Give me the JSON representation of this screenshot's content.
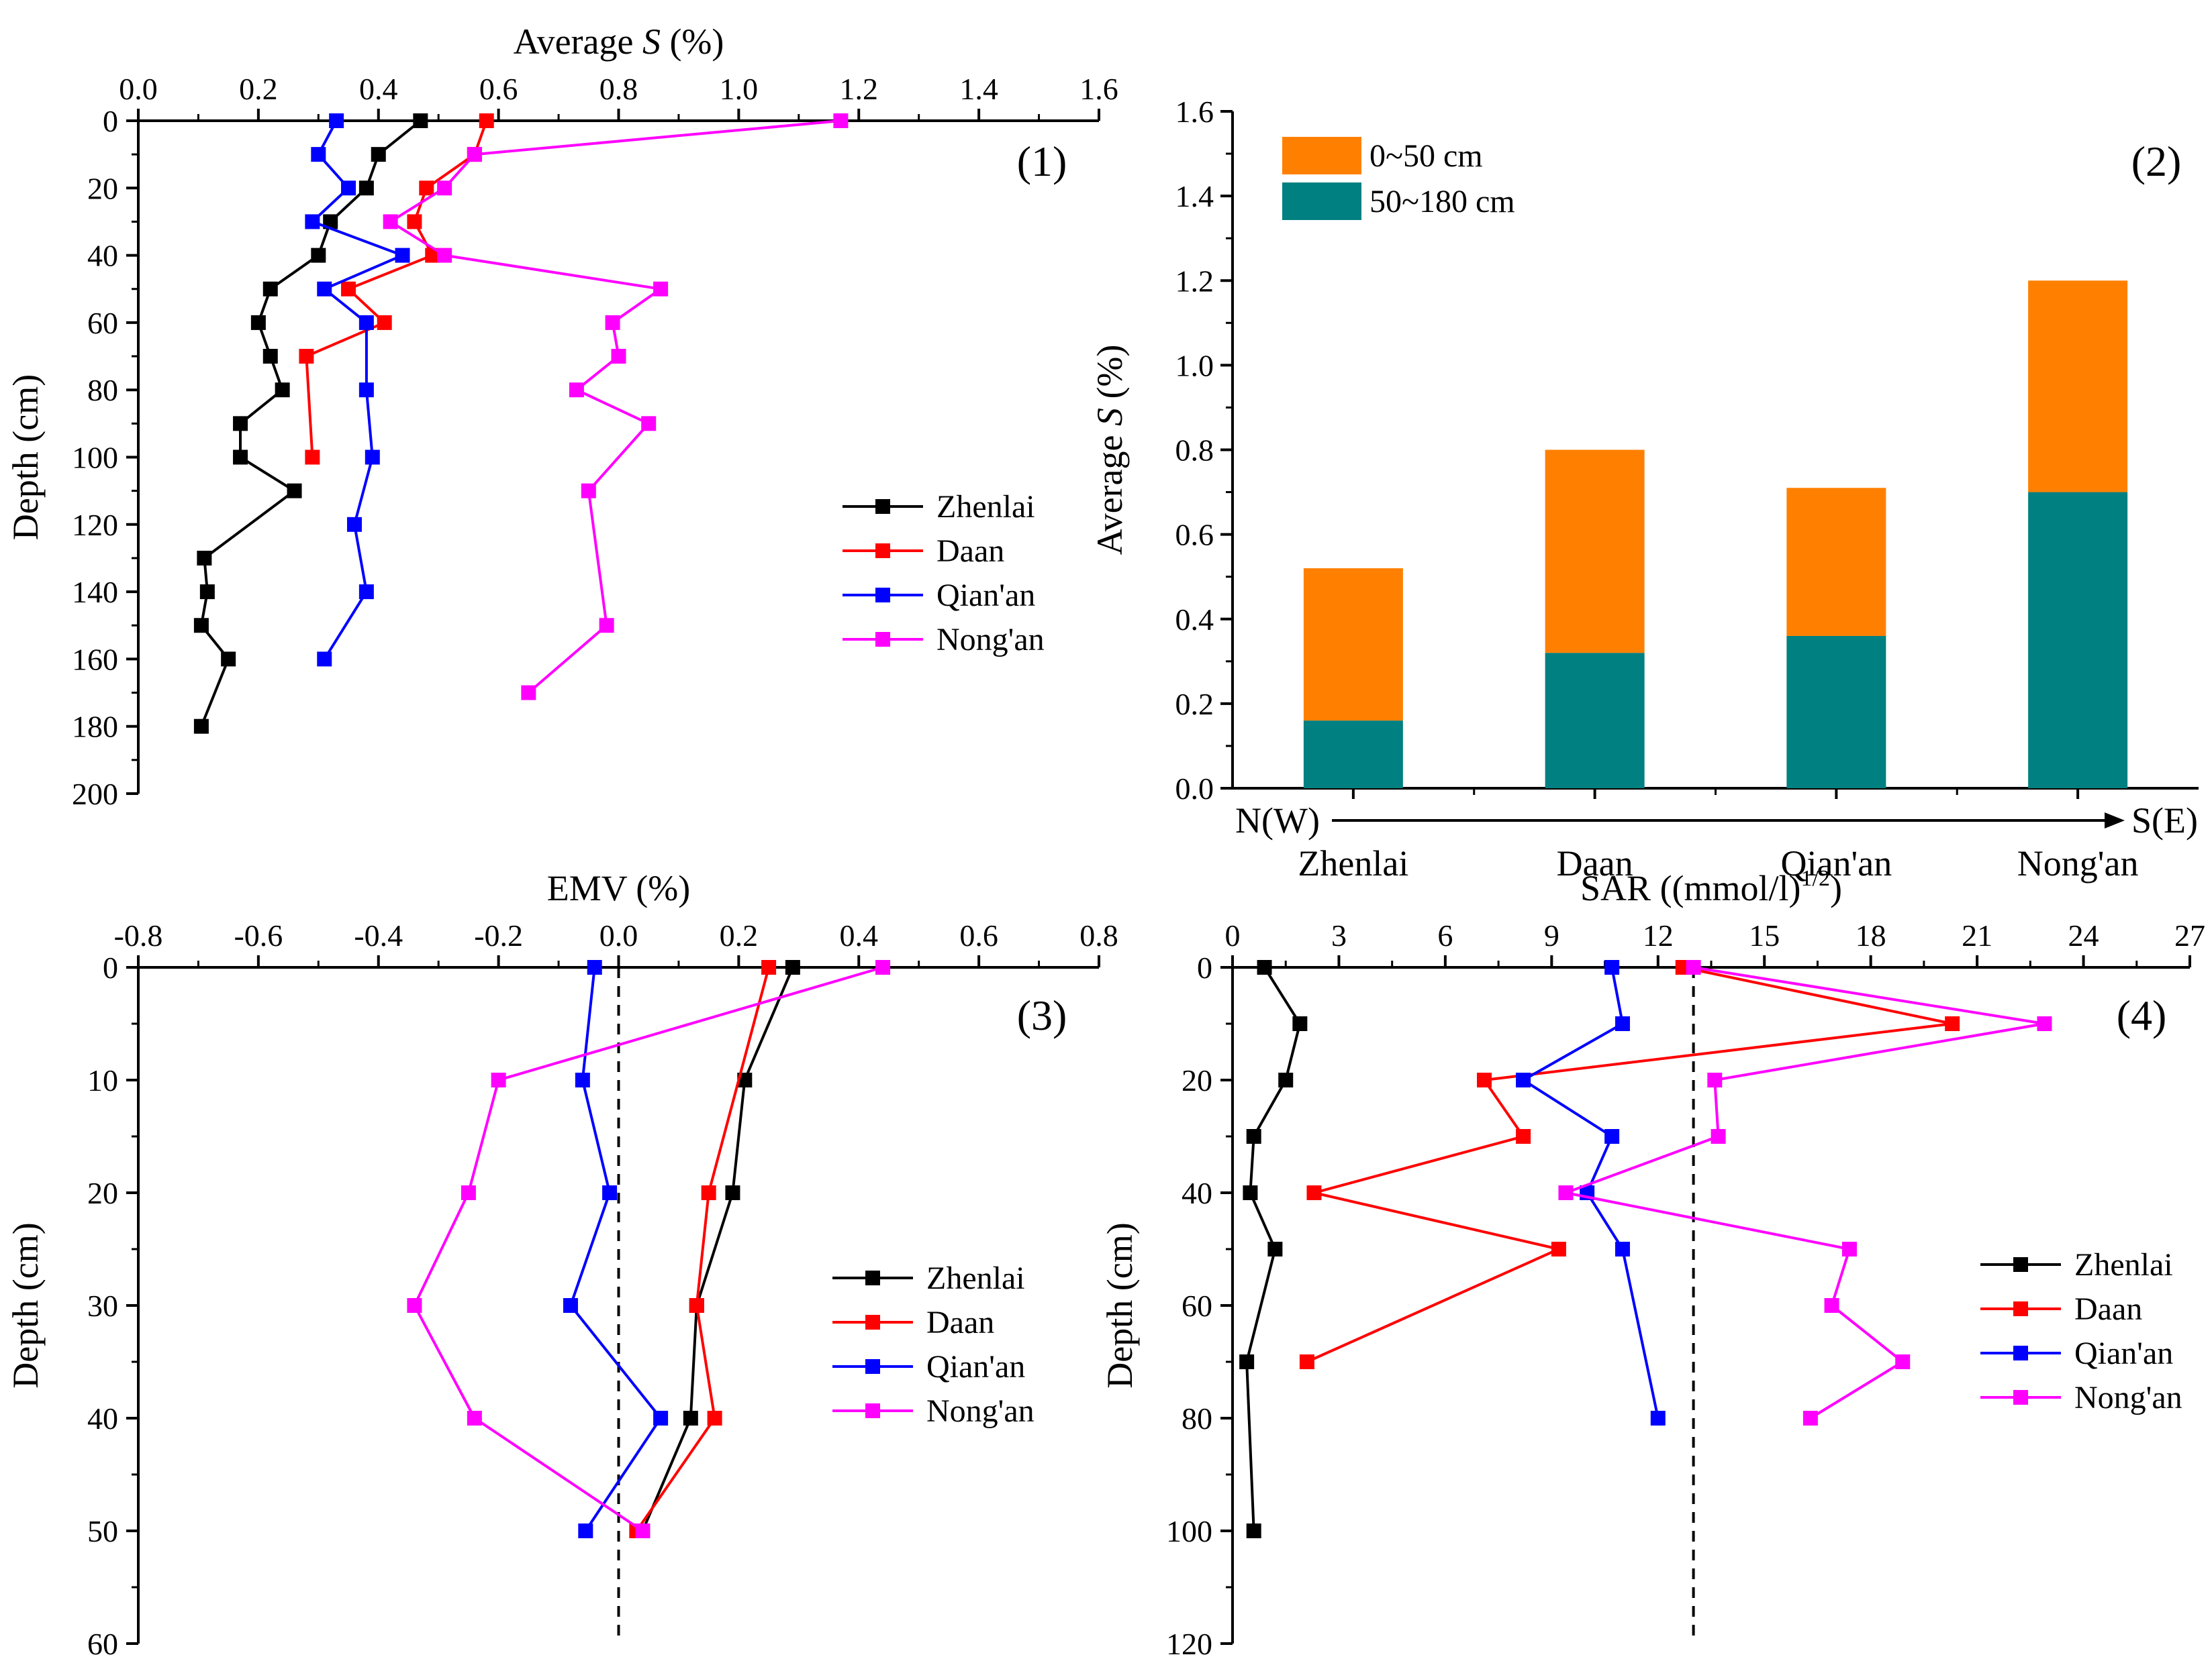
{
  "chart_data": [
    {
      "panel_label": "(1)",
      "type": "line",
      "x_title": "Average S (%)",
      "x_title_parts": [
        "Average ",
        "S",
        " (%)"
      ],
      "y_title": "Depth (cm)",
      "xlim": [
        0,
        1.6
      ],
      "ylim": [
        0,
        200
      ],
      "y_reversed": true,
      "x_axis_position": "top",
      "x_ticks": [
        0,
        0.2,
        0.4,
        0.6,
        0.8,
        1.0,
        1.2,
        1.4,
        1.6
      ],
      "x_tick_labels": [
        "0.0",
        "0.2",
        "0.4",
        "0.6",
        "0.8",
        "1.0",
        "1.2",
        "1.4",
        "1.6"
      ],
      "y_ticks": [
        0,
        20,
        40,
        60,
        80,
        100,
        120,
        140,
        160,
        180,
        200
      ],
      "y_tick_labels": [
        "0",
        "20",
        "40",
        "60",
        "80",
        "100",
        "120",
        "140",
        "160",
        "180",
        "200"
      ],
      "legend": "center-right",
      "series": [
        {
          "name": "Zhenlai",
          "color": "#000000",
          "points": [
            [
              0.47,
              0
            ],
            [
              0.4,
              10
            ],
            [
              0.38,
              20
            ],
            [
              0.32,
              30
            ],
            [
              0.3,
              40
            ],
            [
              0.22,
              50
            ],
            [
              0.2,
              60
            ],
            [
              0.22,
              70
            ],
            [
              0.24,
              80
            ],
            [
              0.17,
              90
            ],
            [
              0.17,
              100
            ],
            [
              0.26,
              110
            ],
            [
              0.11,
              130
            ],
            [
              0.115,
              140
            ],
            [
              0.105,
              150
            ],
            [
              0.15,
              160
            ],
            [
              0.105,
              180
            ]
          ]
        },
        {
          "name": "Daan",
          "color": "#ff0000",
          "points": [
            [
              0.58,
              0
            ],
            [
              0.56,
              10
            ],
            [
              0.48,
              20
            ],
            [
              0.46,
              30
            ],
            [
              0.49,
              40
            ],
            [
              0.35,
              50
            ],
            [
              0.41,
              60
            ],
            [
              0.28,
              70
            ],
            [
              0.29,
              100
            ]
          ]
        },
        {
          "name": "Qian'an",
          "color": "#0000ff",
          "points": [
            [
              0.33,
              0
            ],
            [
              0.3,
              10
            ],
            [
              0.35,
              20
            ],
            [
              0.29,
              30
            ],
            [
              0.44,
              40
            ],
            [
              0.31,
              50
            ],
            [
              0.38,
              60
            ],
            [
              0.38,
              80
            ],
            [
              0.39,
              100
            ],
            [
              0.36,
              120
            ],
            [
              0.38,
              140
            ],
            [
              0.31,
              160
            ]
          ]
        },
        {
          "name": "Nong'an",
          "color": "#ff00ff",
          "points": [
            [
              1.17,
              0
            ],
            [
              0.56,
              10
            ],
            [
              0.51,
              20
            ],
            [
              0.42,
              30
            ],
            [
              0.51,
              40
            ],
            [
              0.87,
              50
            ],
            [
              0.79,
              60
            ],
            [
              0.8,
              70
            ],
            [
              0.73,
              80
            ],
            [
              0.85,
              90
            ],
            [
              0.75,
              110
            ],
            [
              0.78,
              150
            ],
            [
              0.65,
              170
            ]
          ]
        }
      ]
    },
    {
      "panel_label": "(2)",
      "type": "bar",
      "stacked": true,
      "y_title": "Average S (%)",
      "y_title_parts": [
        "Average ",
        "S",
        " (%)"
      ],
      "categories": [
        "Zhenlai",
        "Daan",
        "Qian'an",
        "Nong'an"
      ],
      "series": [
        {
          "name": "50~180 cm",
          "color": "#008080",
          "values": [
            0.16,
            0.32,
            0.36,
            0.7
          ]
        },
        {
          "name": "0~50 cm",
          "color": "#ff8000",
          "values": [
            0.36,
            0.48,
            0.35,
            0.5
          ]
        }
      ],
      "totals": [
        0.52,
        0.8,
        0.71,
        1.2
      ],
      "ylim": [
        0,
        1.6
      ],
      "y_ticks": [
        0,
        0.2,
        0.4,
        0.6,
        0.8,
        1.0,
        1.2,
        1.4,
        1.6
      ],
      "y_tick_labels": [
        "0.0",
        "0.2",
        "0.4",
        "0.6",
        "0.8",
        "1.0",
        "1.2",
        "1.4",
        "1.6"
      ],
      "direction_left": "N(W)",
      "direction_right": "S(E)",
      "legend": "top-left",
      "legend_order": [
        "0~50 cm",
        "50~180 cm"
      ]
    },
    {
      "panel_label": "(3)",
      "type": "line",
      "x_title": "EMV (%)",
      "y_title": "Depth (cm)",
      "xlim": [
        -0.8,
        0.8
      ],
      "ylim": [
        0,
        60
      ],
      "y_reversed": true,
      "x_axis_position": "top",
      "x_ticks": [
        -0.8,
        -0.6,
        -0.4,
        -0.2,
        0.0,
        0.2,
        0.4,
        0.6,
        0.8
      ],
      "x_tick_labels": [
        "-0.8",
        "-0.6",
        "-0.4",
        "-0.2",
        "0.0",
        "0.2",
        "0.4",
        "0.6",
        "0.8"
      ],
      "y_ticks": [
        0,
        10,
        20,
        30,
        40,
        50,
        60
      ],
      "y_tick_labels": [
        "0",
        "10",
        "20",
        "30",
        "40",
        "50",
        "60"
      ],
      "reference_line_x": 0,
      "legend": "center-right",
      "series": [
        {
          "name": "Zhenlai",
          "color": "#000000",
          "points": [
            [
              0.29,
              0
            ],
            [
              0.21,
              10
            ],
            [
              0.19,
              20
            ],
            [
              0.13,
              30
            ],
            [
              0.12,
              40
            ],
            [
              0.04,
              50
            ]
          ]
        },
        {
          "name": "Daan",
          "color": "#ff0000",
          "points": [
            [
              0.25,
              0
            ],
            [
              0.15,
              20
            ],
            [
              0.13,
              30
            ],
            [
              0.16,
              40
            ],
            [
              0.03,
              50
            ]
          ]
        },
        {
          "name": "Qian'an",
          "color": "#0000ff",
          "points": [
            [
              -0.04,
              0
            ],
            [
              -0.06,
              10
            ],
            [
              -0.015,
              20
            ],
            [
              -0.08,
              30
            ],
            [
              0.07,
              40
            ],
            [
              -0.055,
              50
            ]
          ]
        },
        {
          "name": "Nong'an",
          "color": "#ff00ff",
          "points": [
            [
              0.44,
              0
            ],
            [
              -0.2,
              10
            ],
            [
              -0.25,
              20
            ],
            [
              -0.34,
              30
            ],
            [
              -0.24,
              40
            ],
            [
              0.04,
              50
            ]
          ]
        }
      ]
    },
    {
      "panel_label": "(4)",
      "type": "line",
      "x_title": "SAR ((mmol/l)",
      "x_title_sup": "1/2",
      "x_title_end": ")",
      "y_title": "Depth (cm)",
      "xlim": [
        0,
        27
      ],
      "ylim": [
        0,
        120
      ],
      "y_reversed": true,
      "x_axis_position": "top",
      "x_ticks": [
        0,
        3,
        6,
        9,
        12,
        15,
        18,
        21,
        24,
        27
      ],
      "x_tick_labels": [
        "0",
        "3",
        "6",
        "9",
        "12",
        "15",
        "18",
        "21",
        "24",
        "27"
      ],
      "y_ticks": [
        0,
        20,
        40,
        60,
        80,
        100,
        120
      ],
      "y_tick_labels": [
        "0",
        "20",
        "40",
        "60",
        "80",
        "100",
        "120"
      ],
      "reference_line_x": 13,
      "legend": "center-right",
      "series": [
        {
          "name": "Zhenlai",
          "color": "#000000",
          "points": [
            [
              0.9,
              0
            ],
            [
              1.9,
              10
            ],
            [
              1.5,
              20
            ],
            [
              0.6,
              30
            ],
            [
              0.5,
              40
            ],
            [
              1.2,
              50
            ],
            [
              0.4,
              70
            ],
            [
              0.6,
              100
            ]
          ]
        },
        {
          "name": "Daan",
          "color": "#ff0000",
          "points": [
            [
              12.7,
              0
            ],
            [
              20.3,
              10
            ],
            [
              7.1,
              20
            ],
            [
              8.2,
              30
            ],
            [
              2.3,
              40
            ],
            [
              9.2,
              50
            ],
            [
              2.1,
              70
            ]
          ]
        },
        {
          "name": "Qian'an",
          "color": "#0000ff",
          "points": [
            [
              10.7,
              0
            ],
            [
              11,
              10
            ],
            [
              8.2,
              20
            ],
            [
              10.7,
              30
            ],
            [
              10,
              40
            ],
            [
              11,
              50
            ],
            [
              12,
              80
            ]
          ]
        },
        {
          "name": "Nong'an",
          "color": "#ff00ff",
          "points": [
            [
              13,
              0
            ],
            [
              22.9,
              10
            ],
            [
              13.6,
              20
            ],
            [
              13.7,
              30
            ],
            [
              9.4,
              40
            ],
            [
              17.4,
              50
            ],
            [
              16.9,
              60
            ],
            [
              18.9,
              70
            ],
            [
              16.3,
              80
            ]
          ]
        }
      ]
    }
  ]
}
